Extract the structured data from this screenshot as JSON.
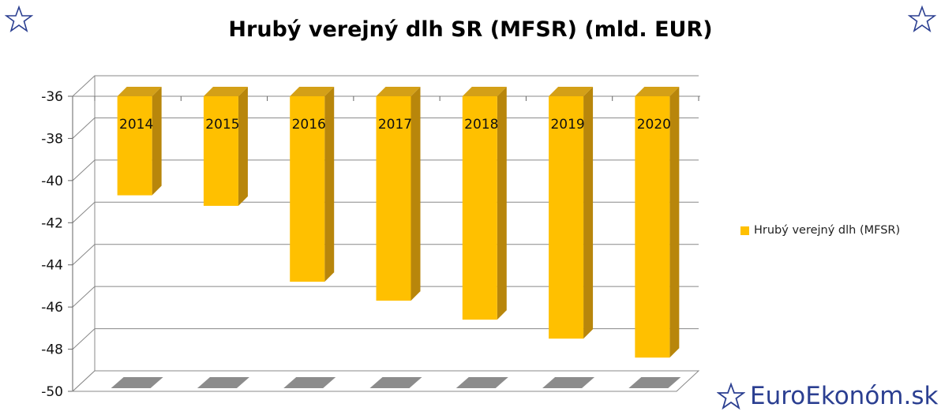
{
  "chart_data": {
    "type": "bar",
    "title": "Hrubý verejný dlh SR (MFSR) (mld. EUR)",
    "categories": [
      "2014",
      "2015",
      "2016",
      "2017",
      "2018",
      "2019",
      "2020"
    ],
    "series": [
      {
        "name": "Hrubý verejný dlh (MFSR)",
        "values": [
          -40.7,
          -41.2,
          -44.8,
          -45.7,
          -46.6,
          -47.5,
          -48.4
        ]
      }
    ],
    "ylim": [
      -50,
      -36
    ],
    "yticks": [
      -36,
      -38,
      -40,
      -42,
      -44,
      -46,
      -48,
      -50
    ],
    "grid": true,
    "legend_position": "right",
    "colors": {
      "bar_front": "#ffc000",
      "bar_side": "#b8860b",
      "bar_top": "#d4a017",
      "floor": "#8c8c8c",
      "grid": "#888888"
    }
  },
  "branding": {
    "text": "EuroEkonóm.sk",
    "icon": "star-outline-icon",
    "color": "#2b3f91"
  }
}
